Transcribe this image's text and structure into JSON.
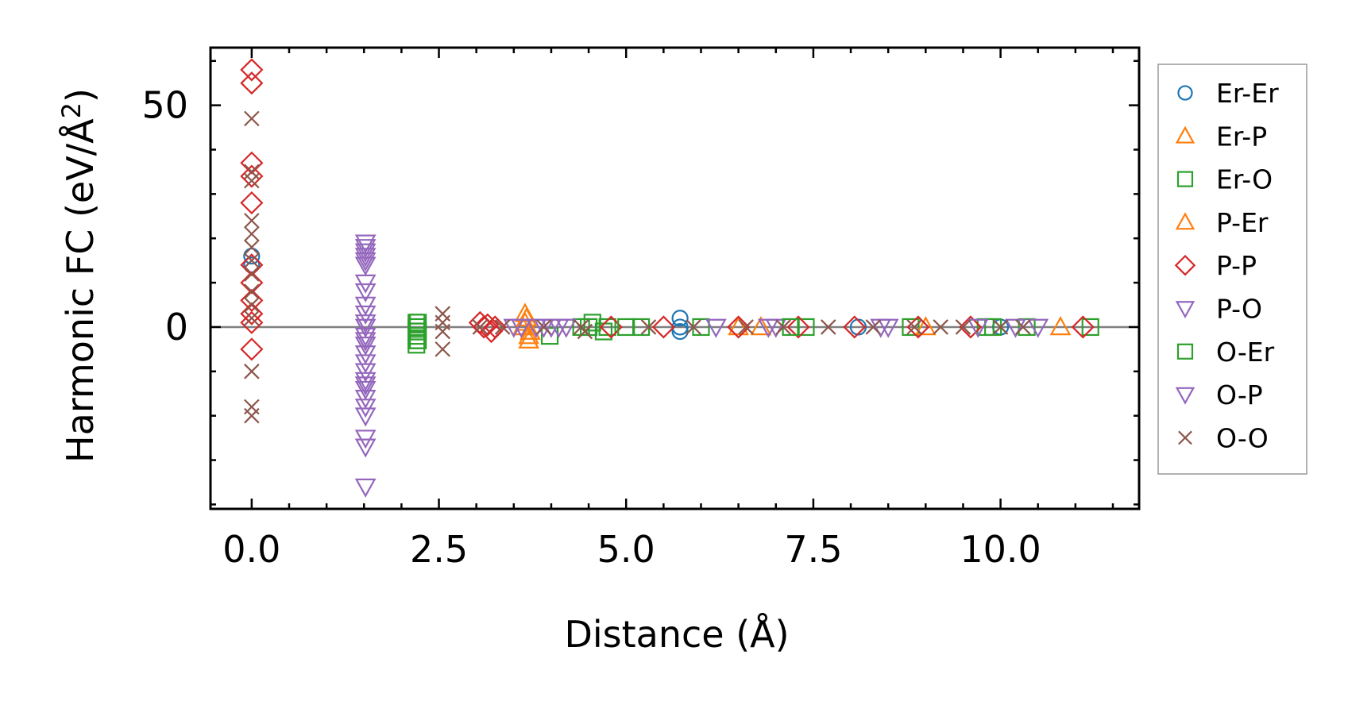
{
  "chart_data": {
    "type": "scatter",
    "xlabel": "Distance (Å)",
    "ylabel_main": "Harmonic FC (eV/Å",
    "ylabel_sup": "2",
    "ylabel_close": ")",
    "xlim": [
      -0.55,
      11.85
    ],
    "ylim": [
      -41,
      63
    ],
    "xticks": [
      0.0,
      2.5,
      5.0,
      7.5,
      10.0
    ],
    "xtick_labels": [
      "0.0",
      "2.5",
      "5.0",
      "7.5",
      "10.0"
    ],
    "yticks": [
      0,
      50
    ],
    "ytick_labels": [
      "0",
      "50"
    ],
    "zero_line": true,
    "legend_position": "right, outside plot",
    "series": [
      {
        "name": "Er-Er",
        "marker": "circle",
        "color": "#1f77b4",
        "points": [
          [
            0.0,
            16
          ],
          [
            0.0,
            14
          ],
          [
            5.72,
            2
          ],
          [
            5.72,
            -1
          ],
          [
            5.72,
            0
          ],
          [
            8.1,
            0
          ],
          [
            10.0,
            0
          ]
        ]
      },
      {
        "name": "Er-P",
        "marker": "triangle-up",
        "color": "#ff7f0e",
        "points": [
          [
            3.65,
            3
          ],
          [
            3.65,
            1
          ],
          [
            3.7,
            -2
          ],
          [
            3.7,
            -3
          ],
          [
            3.62,
            0
          ],
          [
            6.8,
            0
          ],
          [
            10.8,
            0
          ]
        ]
      },
      {
        "name": "Er-O",
        "marker": "square",
        "color": "#2ca02c",
        "points": [
          [
            2.2,
            1
          ],
          [
            2.2,
            0
          ],
          [
            2.2,
            -1
          ],
          [
            2.2,
            -2
          ],
          [
            2.2,
            -3
          ],
          [
            2.2,
            -4
          ],
          [
            3.98,
            -2
          ],
          [
            4.4,
            0
          ],
          [
            4.55,
            1
          ],
          [
            4.75,
            0
          ],
          [
            4.7,
            -1
          ],
          [
            5.2,
            0
          ],
          [
            6.0,
            0
          ],
          [
            7.4,
            0
          ],
          [
            8.8,
            0
          ],
          [
            9.8,
            0
          ],
          [
            10.35,
            0
          ],
          [
            11.2,
            0
          ]
        ]
      },
      {
        "name": "P-Er",
        "marker": "triangle-up",
        "color": "#ff7f0e",
        "points": [
          [
            3.67,
            2
          ],
          [
            3.72,
            -1
          ],
          [
            6.5,
            0
          ],
          [
            9.0,
            0
          ]
        ]
      },
      {
        "name": "P-P",
        "marker": "diamond",
        "color": "#d62728",
        "points": [
          [
            0.0,
            58
          ],
          [
            0.0,
            55
          ],
          [
            0.0,
            37
          ],
          [
            0.0,
            34
          ],
          [
            0.0,
            28
          ],
          [
            0.0,
            14
          ],
          [
            0.0,
            10
          ],
          [
            0.0,
            6
          ],
          [
            0.0,
            3
          ],
          [
            0.0,
            1
          ],
          [
            0.0,
            -5
          ],
          [
            3.05,
            1
          ],
          [
            3.1,
            0
          ],
          [
            3.2,
            -1
          ],
          [
            3.15,
            0.5
          ],
          [
            3.25,
            0
          ],
          [
            4.8,
            0
          ],
          [
            5.5,
            0
          ],
          [
            6.5,
            0
          ],
          [
            7.3,
            0
          ],
          [
            8.05,
            0
          ],
          [
            8.9,
            0
          ],
          [
            9.6,
            0
          ],
          [
            11.1,
            0
          ]
        ]
      },
      {
        "name": "P-O",
        "marker": "triangle-down",
        "color": "#9467bd",
        "points": [
          [
            1.52,
            19
          ],
          [
            1.52,
            17
          ],
          [
            1.52,
            15
          ],
          [
            1.52,
            10
          ],
          [
            1.52,
            8
          ],
          [
            1.52,
            3
          ],
          [
            1.52,
            0
          ],
          [
            1.52,
            -2
          ],
          [
            1.52,
            -4
          ],
          [
            1.52,
            -6
          ],
          [
            1.52,
            -8
          ],
          [
            1.52,
            -10
          ],
          [
            1.52,
            -12
          ],
          [
            1.52,
            -14
          ],
          [
            1.52,
            -16
          ],
          [
            1.52,
            -18
          ],
          [
            1.52,
            -20
          ],
          [
            1.52,
            -25
          ],
          [
            1.52,
            -27
          ],
          [
            1.52,
            -36
          ],
          [
            3.6,
            0
          ],
          [
            3.8,
            0
          ],
          [
            4.0,
            0
          ],
          [
            4.2,
            0
          ],
          [
            6.2,
            0
          ],
          [
            7.0,
            0
          ],
          [
            8.5,
            0
          ],
          [
            10.5,
            0
          ]
        ]
      },
      {
        "name": "O-Er",
        "marker": "square",
        "color": "#2ca02c",
        "points": [
          [
            2.22,
            1
          ],
          [
            2.22,
            -1
          ],
          [
            2.22,
            -3
          ],
          [
            4.5,
            0
          ],
          [
            5.0,
            0
          ],
          [
            7.2,
            0
          ],
          [
            9.9,
            0
          ]
        ]
      },
      {
        "name": "O-P",
        "marker": "triangle-down",
        "color": "#9467bd",
        "points": [
          [
            1.52,
            18
          ],
          [
            1.52,
            16
          ],
          [
            1.52,
            14
          ],
          [
            1.52,
            5
          ],
          [
            1.52,
            1
          ],
          [
            1.52,
            -3
          ],
          [
            1.52,
            -13
          ],
          [
            3.5,
            0
          ],
          [
            3.9,
            0
          ],
          [
            4.1,
            0
          ],
          [
            6.9,
            0
          ],
          [
            8.4,
            0
          ],
          [
            9.7,
            0
          ],
          [
            10.2,
            0
          ]
        ]
      },
      {
        "name": "O-O",
        "marker": "x",
        "color": "#8c564b",
        "points": [
          [
            0.0,
            47
          ],
          [
            0.0,
            35
          ],
          [
            0.0,
            33
          ],
          [
            0.0,
            24
          ],
          [
            0.0,
            21
          ],
          [
            0.0,
            18
          ],
          [
            0.0,
            15
          ],
          [
            0.0,
            12
          ],
          [
            0.0,
            8
          ],
          [
            0.0,
            5
          ],
          [
            0.0,
            2
          ],
          [
            0.0,
            -10
          ],
          [
            0.0,
            -18
          ],
          [
            0.0,
            -20
          ],
          [
            2.55,
            3
          ],
          [
            2.55,
            1
          ],
          [
            2.55,
            -1
          ],
          [
            2.55,
            -5
          ],
          [
            3.05,
            0
          ],
          [
            3.35,
            0
          ],
          [
            3.9,
            0
          ],
          [
            4.4,
            0
          ],
          [
            4.45,
            -1
          ],
          [
            5.3,
            0
          ],
          [
            5.9,
            0
          ],
          [
            6.6,
            0
          ],
          [
            7.1,
            0
          ],
          [
            7.7,
            0
          ],
          [
            8.3,
            0
          ],
          [
            8.85,
            0
          ],
          [
            9.2,
            0
          ],
          [
            9.5,
            0
          ],
          [
            10.0,
            0
          ],
          [
            10.3,
            0
          ]
        ]
      }
    ]
  }
}
